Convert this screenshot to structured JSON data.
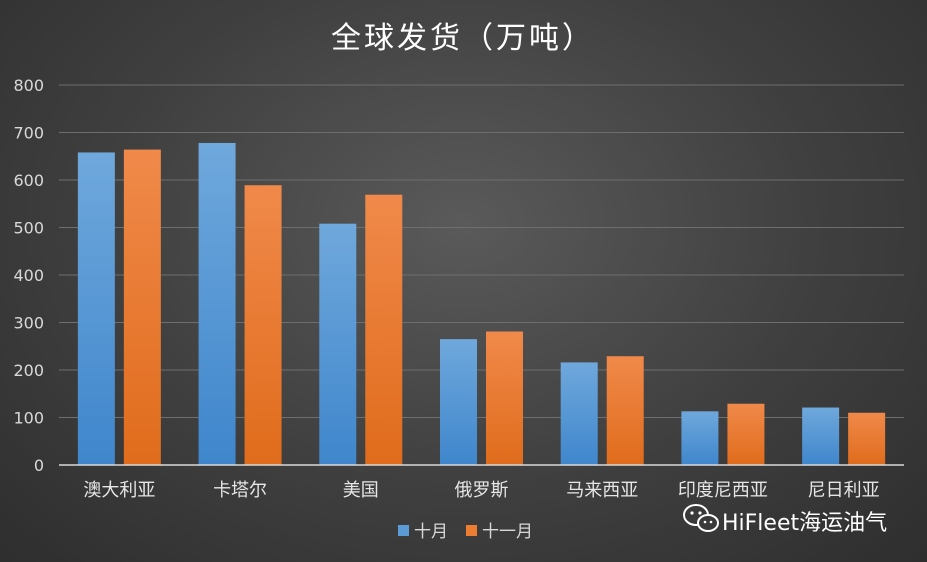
{
  "chart_data": {
    "type": "bar",
    "title": "全球发货（万吨）",
    "categories": [
      "澳大利亚",
      "卡塔尔",
      "美国",
      "俄罗斯",
      "马来西亚",
      "印度尼西亚",
      "尼日利亚"
    ],
    "series": [
      {
        "name": "十月",
        "values": [
          658,
          678,
          508,
          265,
          216,
          113,
          121
        ],
        "color": "#5b9bd5"
      },
      {
        "name": "十一月",
        "values": [
          664,
          589,
          569,
          281,
          229,
          129,
          110
        ],
        "color": "#ed7d31"
      }
    ],
    "ylim": [
      0,
      800
    ],
    "yticks": [
      0,
      100,
      200,
      300,
      400,
      500,
      600,
      700,
      800
    ],
    "grid": true,
    "legend_position": "bottom"
  },
  "watermark": {
    "text": "HiFleet海运油气",
    "icon": "wechat-icon"
  }
}
